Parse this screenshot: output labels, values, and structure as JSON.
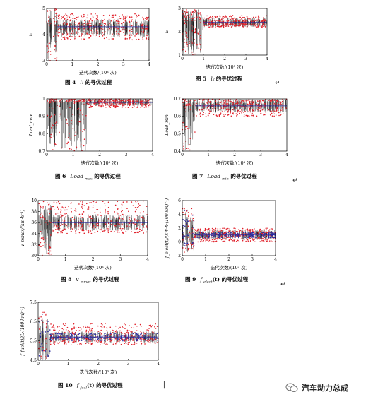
{
  "chart_data": [
    {
      "id": "fig4",
      "type": "scatter",
      "xlabel": "迭代次数/(10³ 次)",
      "ylabel": "l₁",
      "xlim": [
        0,
        4
      ],
      "ylim": [
        3,
        5
      ],
      "xticks": [
        0,
        1,
        2,
        3,
        4
      ],
      "yticks": [
        3,
        4,
        5
      ],
      "caption_fig": "图 4",
      "caption_sym": "l₁",
      "caption_text": "的寻优过程",
      "series": [
        {
          "color": "#000000",
          "values_summary": {
            "converged_mean": 4.3,
            "converged_spread": [
              3.9,
              4.6
            ],
            "initial_spread": [
              3.0,
              5.0
            ],
            "converge_iteration": 0.4
          }
        },
        {
          "color": "#e0202a",
          "values_summary": {
            "converged_mean": 4.3,
            "converged_spread": [
              3.8,
              4.8
            ]
          }
        }
      ]
    },
    {
      "id": "fig5",
      "type": "scatter",
      "xlabel": "迭代次数/(10³ 次)",
      "ylabel": "l₂",
      "xlim": [
        0,
        4
      ],
      "ylim": [
        1,
        3
      ],
      "xticks": [
        0,
        1,
        2,
        3,
        4
      ],
      "yticks": [
        1,
        2,
        3
      ],
      "caption_fig": "图 5",
      "caption_sym": "l₂",
      "caption_text": "的寻优过程",
      "series": [
        {
          "color": "#000000",
          "values_summary": {
            "converged_mean": 2.4,
            "converged_spread": [
              2.2,
              2.6
            ],
            "initial_spread": [
              1.0,
              3.0
            ],
            "converge_iteration": 1.0
          }
        },
        {
          "color": "#e0202a",
          "values_summary": {
            "converged_mean": 2.4,
            "converged_spread": [
              2.2,
              2.7
            ]
          }
        }
      ]
    },
    {
      "id": "fig6",
      "type": "scatter",
      "xlabel": "迭代次数/(10³ 次)",
      "ylabel": "Load_max",
      "xlim": [
        0,
        4
      ],
      "ylim": [
        0.7,
        1.0
      ],
      "xticks": [
        0,
        1,
        2,
        3,
        4
      ],
      "yticks": [
        0.7,
        0.8,
        0.9,
        1.0
      ],
      "caption_fig": "图 6",
      "caption_sym": "Load",
      "caption_sub": "max",
      "caption_text": "的寻优过程",
      "series": [
        {
          "color": "#000000",
          "values_summary": {
            "converged_mean": 0.98,
            "converged_spread": [
              0.96,
              1.0
            ],
            "initial_spread": [
              0.7,
              1.0
            ],
            "converge_iteration": 1.5
          }
        },
        {
          "color": "#e0202a",
          "values_summary": {
            "converged_mean": 0.98,
            "converged_spread": [
              0.95,
              1.0
            ]
          }
        }
      ]
    },
    {
      "id": "fig7",
      "type": "scatter",
      "xlabel": "迭代次数/(10³ 次)",
      "ylabel": "Load_min",
      "xlim": [
        0,
        4
      ],
      "ylim": [
        0.4,
        0.7
      ],
      "xticks": [
        0,
        1,
        2,
        3,
        4
      ],
      "yticks": [
        0.4,
        0.5,
        0.6,
        0.7
      ],
      "caption_fig": "图 7",
      "caption_sym": "Load",
      "caption_sub": "min",
      "caption_text": "的寻优过程",
      "series": [
        {
          "color": "#000000",
          "values_summary": {
            "converged_mean": 0.66,
            "converged_spread": [
              0.62,
              0.7
            ],
            "initial_spread": [
              0.4,
              0.7
            ],
            "converge_iteration": 0.5
          }
        },
        {
          "color": "#e0202a",
          "values_summary": {
            "converged_mean": 0.66,
            "converged_spread": [
              0.6,
              0.7
            ]
          }
        }
      ]
    },
    {
      "id": "fig8",
      "type": "scatter",
      "xlabel": "迭代次数/(10³ 次)",
      "ylabel": "v_mmax/(km·h⁻¹)",
      "xlim": [
        0,
        4
      ],
      "ylim": [
        30,
        40
      ],
      "xticks": [
        0,
        1,
        2,
        3,
        4
      ],
      "yticks": [
        30,
        32,
        34,
        36,
        38,
        40
      ],
      "caption_fig": "图 8",
      "caption_sym": "v",
      "caption_sub": "mmax",
      "caption_text": "的寻优过程",
      "series": [
        {
          "color": "#000000",
          "values_summary": {
            "converged_mean": 36.0,
            "converged_spread": [
              34.5,
              37.5
            ],
            "initial_spread": [
              30.0,
              40.0
            ],
            "converge_iteration": 0.5
          }
        },
        {
          "color": "#e0202a",
          "values_summary": {
            "converged_mean": 36.0,
            "converged_spread": [
              34.0,
              40.0
            ]
          }
        }
      ]
    },
    {
      "id": "fig9",
      "type": "scatter",
      "xlabel": "迭代次数/(10³ 次)",
      "ylabel": "f_elect(t)/(kW·h·(100 km)⁻¹)",
      "xlim": [
        0,
        4
      ],
      "ylim": [
        -2,
        6
      ],
      "xticks": [
        0,
        1,
        2,
        3,
        4
      ],
      "yticks": [
        -2,
        0,
        2,
        4,
        6
      ],
      "caption_fig": "图 9",
      "caption_sym": "f",
      "caption_sub": "elect",
      "caption_text": "(t) 的寻优过程",
      "series": [
        {
          "color": "#000000",
          "values_summary": {
            "converged_mean": 1.0,
            "converged_spread": [
              0.3,
              1.8
            ],
            "initial_spread": [
              -1.5,
              5.0
            ],
            "converge_iteration": 0.5
          }
        },
        {
          "color": "#e0202a",
          "values_summary": {
            "converged_mean": 1.0,
            "converged_spread": [
              0.0,
              2.0
            ]
          }
        },
        {
          "color": "#2a2aa0",
          "values_summary": {
            "converged_mean": 1.0,
            "converged_spread": [
              0.6,
              1.4
            ]
          }
        }
      ]
    },
    {
      "id": "fig10",
      "type": "scatter",
      "xlabel": "迭代次数/(10³ 次)",
      "ylabel": "f_fuel(t)/(L·(100 km)⁻¹)",
      "xlim": [
        0,
        4
      ],
      "ylim": [
        4.5,
        7.5
      ],
      "xticks": [
        0,
        1,
        2,
        3,
        4
      ],
      "yticks": [
        4.5,
        5.5,
        6.5,
        7.5
      ],
      "caption_fig": "图 10",
      "caption_sym": "f",
      "caption_sub": "fuel",
      "caption_text": "(t) 的寻优过程",
      "series": [
        {
          "color": "#000000",
          "values_summary": {
            "converged_mean": 5.7,
            "converged_spread": [
              5.4,
              6.0
            ],
            "initial_spread": [
              4.5,
              7.0
            ],
            "converge_iteration": 0.4
          }
        },
        {
          "color": "#e0202a",
          "values_summary": {
            "converged_mean": 5.7,
            "converged_spread": [
              5.3,
              6.4
            ]
          }
        },
        {
          "color": "#2a2aa0",
          "values_summary": {
            "converged_mean": 5.7,
            "converged_spread": [
              5.5,
              5.9
            ]
          }
        }
      ]
    }
  ],
  "watermark": {
    "text": "汽车动力总成"
  }
}
